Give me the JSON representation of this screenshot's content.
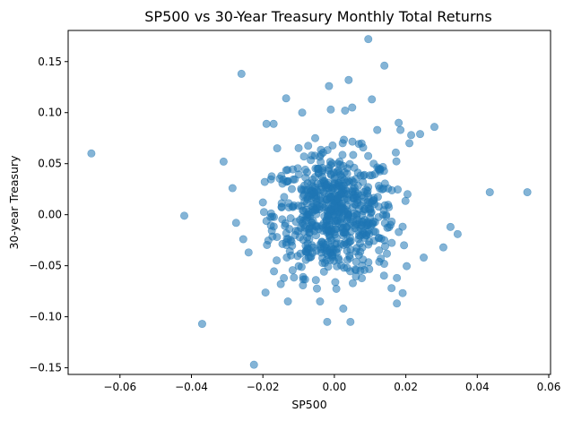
{
  "chart_data": {
    "type": "scatter",
    "title": "SP500 vs 30-Year Treasury Monthly Total Returns",
    "xlabel": "SP500",
    "ylabel": "30-year Treasury",
    "xlim": [
      -0.0745,
      0.0605
    ],
    "ylim": [
      -0.1565,
      0.1805
    ],
    "x_ticks": [
      -0.06,
      -0.04,
      -0.02,
      0.0,
      0.02,
      0.04,
      0.06
    ],
    "x_tick_labels": [
      "−0.06",
      "−0.04",
      "−0.02",
      "0.00",
      "0.02",
      "0.04",
      "0.06"
    ],
    "y_ticks": [
      -0.15,
      -0.1,
      -0.05,
      0.0,
      0.05,
      0.1,
      0.15
    ],
    "y_tick_labels": [
      "−0.15",
      "−0.10",
      "−0.05",
      "0.00",
      "0.05",
      "0.10",
      "0.15"
    ],
    "grid": false,
    "legend": "none",
    "marker_color": "#1f77b4",
    "marker_alpha": 0.55,
    "series": [
      {
        "x": [
          -0.068,
          -0.042,
          -0.037,
          -0.0225,
          -0.026,
          0.054,
          0.0435,
          0.0095,
          0.014,
          -0.0015,
          0.004,
          -0.0135,
          0.005,
          0.0105,
          -0.009,
          -0.001,
          0.003,
          -0.019,
          0.028,
          0.0185,
          0.0345,
          0.0325,
          0.0305,
          0.024,
          0.0215,
          -0.031,
          -0.0285,
          -0.0275,
          -0.0255,
          -0.024,
          -0.002,
          0.0025,
          0.0175,
          0.016,
          0.0175,
          0.013,
          0.0045,
          -0.004,
          -0.013,
          -0.015,
          0.012,
          -0.017,
          0.018,
          0.025,
          -0.0045,
          -0.001,
          0.0,
          0.0015,
          0.004,
          -0.0075,
          0.0095,
          0.002,
          -0.007,
          0.0065,
          -0.005,
          -0.011,
          0.014,
          0.0195,
          0.0125,
          -0.0005,
          -0.0085,
          -0.016,
          0.021,
          -0.02,
          0.011
        ],
        "y": [
          0.06,
          -0.001,
          -0.107,
          -0.147,
          0.138,
          0.022,
          0.022,
          0.172,
          0.146,
          0.126,
          0.132,
          0.114,
          0.105,
          0.113,
          0.1,
          0.103,
          0.102,
          0.089,
          0.086,
          0.083,
          -0.019,
          -0.012,
          -0.032,
          0.079,
          0.078,
          0.052,
          0.026,
          -0.008,
          -0.024,
          -0.037,
          -0.105,
          -0.092,
          -0.087,
          -0.072,
          -0.062,
          -0.043,
          -0.105,
          -0.085,
          -0.085,
          -0.068,
          0.083,
          0.089,
          0.09,
          -0.042,
          0.045,
          0.04,
          0.035,
          0.028,
          0.02,
          0.015,
          0.01,
          0.005,
          0.0,
          -0.005,
          -0.012,
          -0.02,
          -0.025,
          -0.03,
          -0.035,
          -0.04,
          0.057,
          0.065,
          0.07,
          0.012,
          0.05
        ]
      }
    ],
    "point_cloud": {
      "center": [
        0.0,
        0.0
      ],
      "spread_x": 0.0085,
      "spread_y": 0.03,
      "count": 640
    }
  }
}
